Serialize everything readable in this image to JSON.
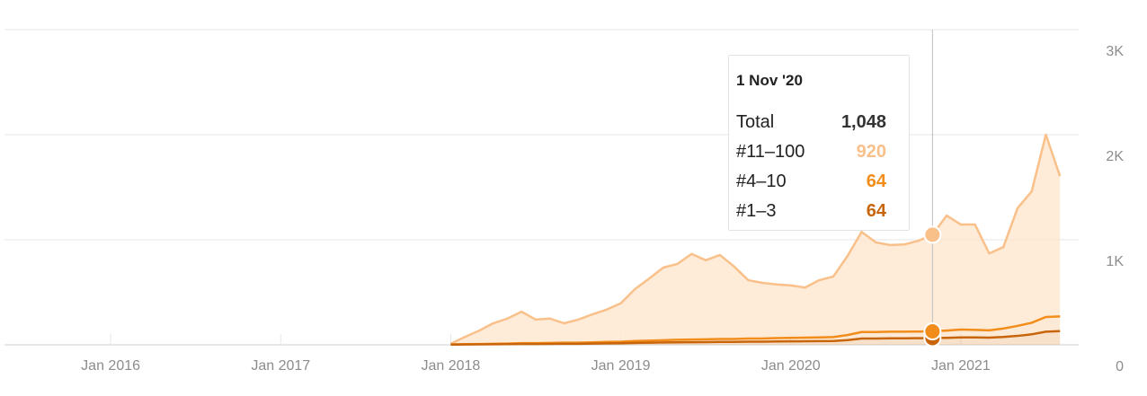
{
  "chart_data": {
    "type": "stacked-area",
    "x": [
      "2018-01",
      "2018-02",
      "2018-03",
      "2018-04",
      "2018-05",
      "2018-06",
      "2018-07",
      "2018-08",
      "2018-09",
      "2018-10",
      "2018-11",
      "2018-12",
      "2019-01",
      "2019-02",
      "2019-03",
      "2019-04",
      "2019-05",
      "2019-06",
      "2019-07",
      "2019-08",
      "2019-09",
      "2019-10",
      "2019-11",
      "2019-12",
      "2020-01",
      "2020-02",
      "2020-03",
      "2020-04",
      "2020-05",
      "2020-06",
      "2020-07",
      "2020-08",
      "2020-09",
      "2020-10",
      "2020-11",
      "2020-12",
      "2021-01",
      "2021-02",
      "2021-03",
      "2021-04",
      "2021-05",
      "2021-06",
      "2021-07",
      "2021-08"
    ],
    "series": [
      {
        "name": "#11–100",
        "color": "#f9c08a",
        "fill": "#fde6cc",
        "values": [
          6,
          69,
          127,
          195,
          238,
          299,
          224,
          232,
          185,
          220,
          266,
          307,
          365,
          494,
          590,
          691,
          722,
          815,
          753,
          799,
          689,
          555,
          530,
          511,
          499,
          477,
          544,
          576,
          752,
          953,
          853,
          825,
          830,
          864,
          920,
          1094,
          1000,
          1003,
          732,
          775,
          1120,
          1250,
          1735,
          1335
        ]
      },
      {
        "name": "#4–10",
        "color": "#f28c1a",
        "fill": "#f8c28a",
        "values": [
          2,
          3,
          4,
          5,
          6,
          8,
          8,
          9,
          10,
          10,
          12,
          14,
          15,
          18,
          20,
          22,
          24,
          25,
          26,
          28,
          28,
          30,
          30,
          32,
          33,
          34,
          36,
          38,
          48,
          62,
          62,
          63,
          63,
          63,
          64,
          70,
          75,
          72,
          70,
          80,
          95,
          110,
          140,
          140
        ]
      },
      {
        "name": "#1–3",
        "color": "#c8650a",
        "fill": "#e9a86a",
        "values": [
          2,
          3,
          4,
          5,
          6,
          8,
          8,
          9,
          10,
          10,
          12,
          14,
          15,
          18,
          20,
          22,
          24,
          25,
          26,
          28,
          28,
          30,
          30,
          32,
          33,
          34,
          35,
          36,
          45,
          60,
          60,
          62,
          62,
          63,
          64,
          66,
          70,
          70,
          68,
          75,
          85,
          100,
          125,
          130
        ]
      }
    ],
    "xlim": [
      "2015-05",
      "2021-09"
    ],
    "xticks": [
      {
        "value": "2016-01",
        "label": "Jan 2016"
      },
      {
        "value": "2017-01",
        "label": "Jan 2017"
      },
      {
        "value": "2018-01",
        "label": "Jan 2018"
      },
      {
        "value": "2019-01",
        "label": "Jan 2019"
      },
      {
        "value": "2020-01",
        "label": "Jan 2020"
      },
      {
        "value": "2021-01",
        "label": "Jan 2021"
      }
    ],
    "ylim": [
      0,
      3000
    ],
    "yticks": [
      0,
      {
        "value": 1000,
        "label": "1K"
      },
      {
        "value": 2000,
        "label": "2K"
      },
      {
        "value": 3000,
        "label": "3K"
      }
    ],
    "grid": true,
    "tooltip": {
      "x": "2020-11",
      "title": "1 Nov '20",
      "total": {
        "name": "Total",
        "value": 1048,
        "label": "1,048"
      }
    }
  }
}
